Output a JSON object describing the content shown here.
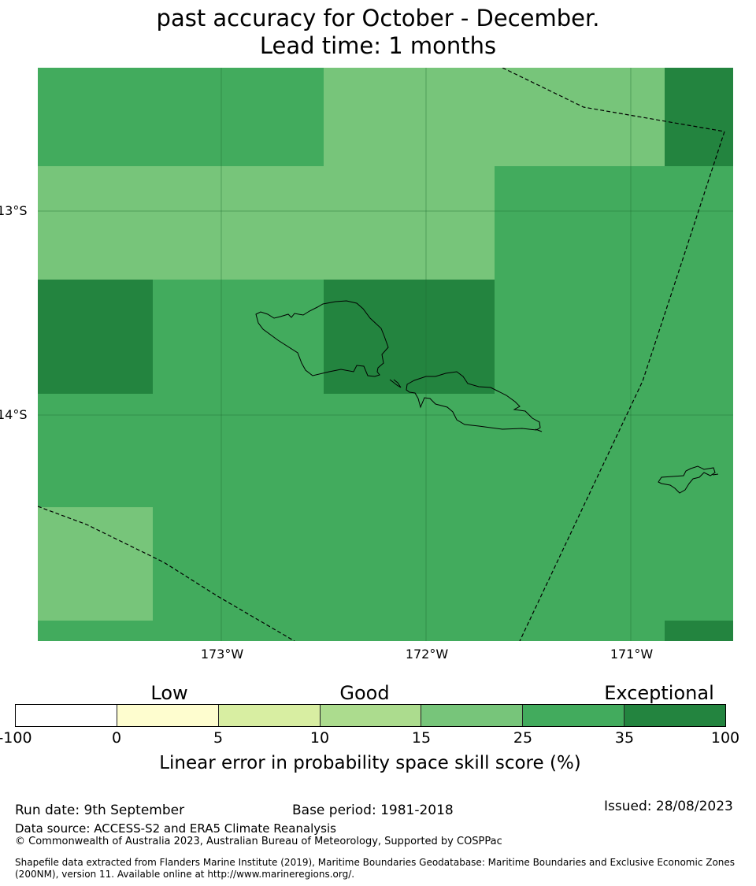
{
  "title": {
    "line1": "past accuracy for October - December.",
    "line2": "Lead time: 1 months"
  },
  "map": {
    "lat_labels": [
      "13°S",
      "14°S"
    ],
    "lon_labels": [
      "173°W",
      "172°W",
      "171°W"
    ],
    "grid": [
      [
        3,
        3,
        3,
        3,
        3,
        2,
        2,
        2,
        2,
        2,
        2,
        4
      ],
      [
        2,
        2,
        2,
        2,
        2,
        2,
        2,
        2,
        3,
        3,
        3,
        3
      ],
      [
        4,
        4,
        3,
        3,
        3,
        4,
        4,
        4,
        3,
        3,
        3,
        3
      ],
      [
        3,
        3,
        3,
        3,
        3,
        3,
        3,
        3,
        3,
        3,
        3,
        3
      ],
      [
        2,
        2,
        3,
        3,
        3,
        3,
        3,
        3,
        3,
        3,
        3,
        3
      ],
      [
        3,
        3,
        3,
        3,
        3,
        3,
        3,
        3,
        3,
        3,
        3,
        4
      ]
    ]
  },
  "colorbar": {
    "category_labels": [
      "Low",
      "Good",
      "Exceptional"
    ],
    "ticks": [
      "-100",
      "0",
      "5",
      "10",
      "15",
      "25",
      "35",
      "100"
    ],
    "colors": [
      "#ffffff",
      "#fefdcf",
      "#d8eea2",
      "#acdc8e",
      "#77c57a",
      "#42ab5d",
      "#23843f"
    ],
    "label": "Linear error in probability space skill score (%)"
  },
  "footer": {
    "run_date": "Run date: 9th September",
    "base_period": "Base period: 1981-2018",
    "issued": "Issued: 28/08/2023",
    "data_source": "Data source: ACCESS-S2 and ERA5 Climate Reanalysis",
    "copyright": "© Commonwealth of Australia 2023, Australian Bureau of Meteorology, Supported by COSPPac",
    "shapefile_line1": "Shapefile data extracted from Flanders Marine Institute (2019), Maritime Boundaries Geodatabase: Maritime Boundaries and Exclusive Economic Zones",
    "shapefile_line2": "(200NM), version 11. Available online at http://www.marineregions.org/."
  }
}
